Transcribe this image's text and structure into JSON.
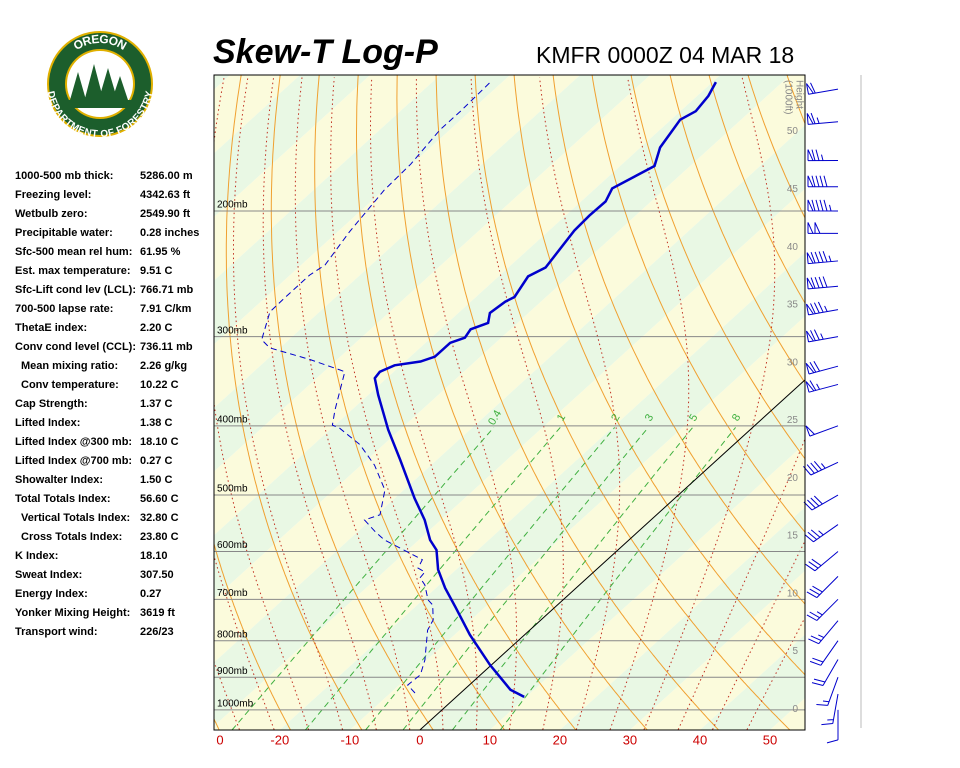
{
  "chart_data": {
    "type": "skewt",
    "title": "Skew-T Log-P",
    "subtitle": "KMFR 0000Z 04 MAR 18",
    "xlim": [
      -29.4,
      55
    ],
    "xticks": [
      -20,
      -10,
      0,
      10,
      20,
      30,
      40,
      50
    ],
    "xtick_left_label": "0",
    "ylim": [
      1067,
      129
    ],
    "log_y": true,
    "yticks": [
      {
        "value": 200,
        "label": "200mb"
      },
      {
        "value": 300,
        "label": "300mb"
      },
      {
        "value": 400,
        "label": "400mb"
      },
      {
        "value": 500,
        "label": "500mb"
      },
      {
        "value": 600,
        "label": "600mb"
      },
      {
        "value": 700,
        "label": "700mb"
      },
      {
        "value": 800,
        "label": "800mb"
      },
      {
        "value": 900,
        "label": "900mb"
      },
      {
        "value": 1000,
        "label": "1000mb"
      }
    ],
    "y2label": [
      "Height",
      "(1000ft)"
    ],
    "y2lim": [
      -1.8,
      54.9
    ],
    "y2ticks": [
      0,
      5,
      10,
      15,
      20,
      25,
      30,
      35,
      40,
      45,
      50
    ],
    "mixing_ratios": [
      0.4,
      1,
      2,
      3,
      5,
      8
    ],
    "band_colors": [
      "#e9f8e4",
      "#fbfbdc"
    ],
    "series": [
      {
        "color": "#0000cc",
        "style": "solid",
        "pressure": [
          959,
          937,
          865,
          785,
          717,
          675,
          636,
          597,
          578,
          542,
          505,
          446,
          405,
          362,
          343,
          336,
          329,
          325,
          320,
          306,
          301,
          293,
          287,
          278,
          268,
          264,
          247,
          240,
          213,
          203,
          194,
          186,
          173,
          163,
          149,
          145,
          138,
          132
        ],
        "values": [
          9.7,
          6.6,
          -0.2,
          -7.8,
          -14.3,
          -18.7,
          -22.6,
          -25.9,
          -28.4,
          -32.3,
          -37.2,
          -45.3,
          -51.7,
          -58.6,
          -61.7,
          -62.0,
          -60.9,
          -57.8,
          -56.5,
          -56.5,
          -55.2,
          -55.7,
          -54.2,
          -55.5,
          -55.1,
          -54.5,
          -55.8,
          -54.7,
          -56.4,
          -56.6,
          -56.5,
          -57.6,
          -55.1,
          -57.2,
          -58.7,
          -57.8,
          -58.4,
          -59.5
        ]
      },
      {
        "color": "#0000cc",
        "style": "dashed",
        "pressure": [
          947,
          923,
          893,
          851,
          773,
          748,
          713,
          701,
          668,
          653,
          641,
          633,
          616,
          578,
          563,
          542,
          533,
          492,
          454,
          425,
          403,
          399,
          380,
          336,
          334,
          323,
          311,
          303,
          277,
          265,
          246,
          238,
          214,
          187,
          172,
          154,
          145,
          132
        ],
        "values": [
          -6.5,
          -8.8,
          -8.6,
          -10.3,
          -14.6,
          -15.4,
          -17.8,
          -19.3,
          -22.1,
          -23.9,
          -24.1,
          -25.7,
          -26.4,
          -34.9,
          -37.5,
          -40.9,
          -39.5,
          -42.7,
          -48.1,
          -53.4,
          -58.9,
          -60.4,
          -62.4,
          -67.0,
          -68.0,
          -73.9,
          -81.5,
          -83.9,
          -87.1,
          -87.2,
          -87.2,
          -86.6,
          -88.3,
          -89.9,
          -90.2,
          -91.4,
          -91.4,
          -91.7
        ]
      }
    ],
    "wind": {
      "color": "#0000cc",
      "pressure": [
        135,
        150,
        170,
        185,
        200,
        215,
        235,
        255,
        275,
        300,
        330,
        350,
        400,
        450,
        500,
        550,
        600,
        650,
        700,
        750,
        800,
        850,
        900,
        950,
        1000
      ],
      "direction": [
        260,
        265,
        270,
        270,
        270,
        270,
        265,
        265,
        260,
        260,
        255,
        255,
        250,
        245,
        240,
        235,
        230,
        225,
        225,
        220,
        215,
        210,
        200,
        190,
        180
      ],
      "speed": [
        60,
        65,
        75,
        90,
        95,
        100,
        95,
        90,
        85,
        75,
        70,
        65,
        50,
        45,
        40,
        35,
        30,
        30,
        25,
        25,
        20,
        20,
        15,
        15,
        10
      ]
    }
  },
  "indices": [
    {
      "label": "1000-500 mb thick:",
      "value": "5286.00 m"
    },
    {
      "label": "Freezing level:",
      "value": "4342.63 ft"
    },
    {
      "label": "Wetbulb zero:",
      "value": "2549.90 ft"
    },
    {
      "label": "Precipitable water:",
      "value": "0.28 inches"
    },
    {
      "label": "Sfc-500 mean rel hum:",
      "value": "61.95 %"
    },
    {
      "label": "Est. max temperature:",
      "value": "9.51 C"
    },
    {
      "label": "Sfc-Lift cond lev (LCL):",
      "value": "766.71 mb"
    },
    {
      "label": "700-500 lapse rate:",
      "value": "7.91 C/km"
    },
    {
      "label": "ThetaE index:",
      "value": "2.20 C"
    },
    {
      "label": "Conv cond level (CCL):",
      "value": "736.11 mb",
      "sub": [
        {
          "label": "Mean mixing ratio:",
          "value": "2.26 g/kg"
        },
        {
          "label": "Conv temperature:",
          "value": "10.22 C"
        }
      ]
    },
    {
      "label": "Cap Strength:",
      "value": "1.37 C"
    },
    {
      "label": "Lifted Index:",
      "value": "1.38 C"
    },
    {
      "label": "Lifted Index @300 mb:",
      "value": "18.10 C"
    },
    {
      "label": "Lifted Index @700 mb:",
      "value": "0.27 C"
    },
    {
      "label": "Showalter Index:",
      "value": "1.50 C"
    },
    {
      "label": "Total Totals Index:",
      "value": "56.60 C",
      "sub": [
        {
          "label": "Vertical Totals Index:",
          "value": "32.80 C"
        },
        {
          "label": "Cross Totals Index:",
          "value": "23.80 C"
        }
      ]
    },
    {
      "label": "K Index:",
      "value": "18.10"
    },
    {
      "label": "Sweat Index:",
      "value": "307.50"
    },
    {
      "label": "Energy Index:",
      "value": "0.27"
    },
    {
      "label": "Yonker Mixing Height:",
      "value": "3619 ft"
    },
    {
      "label": "Transport wind:",
      "value": "226/23"
    }
  ],
  "logo": {
    "top": "OREGON",
    "bottom": "DEPARTMENT OF FORESTRY"
  }
}
